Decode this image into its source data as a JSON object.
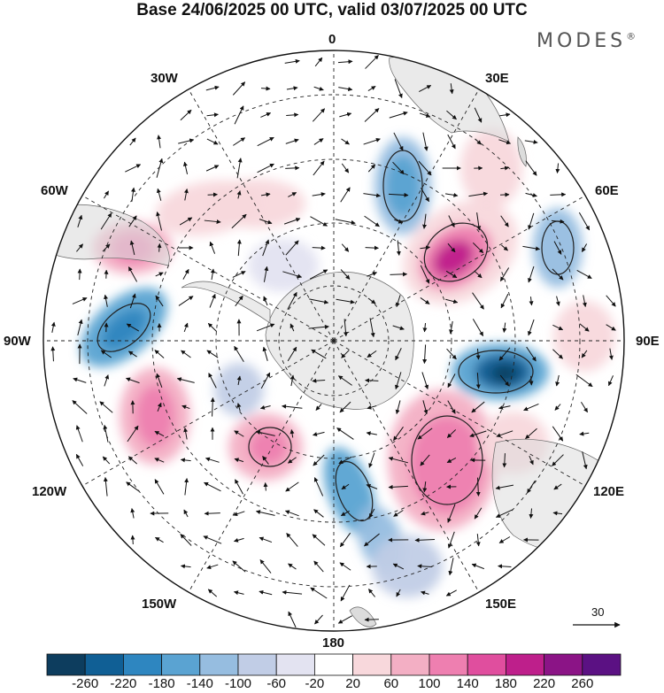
{
  "header": {
    "title": "Base 24/06/2025 00 UTC, valid 03/07/2025 00 UTC",
    "brand": "MODES",
    "brand_mark": "®"
  },
  "map": {
    "projection": "south polar stereographic",
    "lon_labels": {
      "top": "0",
      "top_left": "30W",
      "top_right": "30E",
      "upper_left": "60W",
      "upper_right": "60E",
      "left": "90W",
      "right": "90E",
      "lower_left": "120W",
      "lower_right": "120E",
      "bottom_left": "150W",
      "bottom_right": "150E",
      "bottom": "180"
    },
    "reference_vector": "30"
  },
  "colorbar": {
    "colors": [
      "#0d3d5e",
      "#105f95",
      "#2e86c0",
      "#5aa3d2",
      "#96bde0",
      "#c1cde6",
      "#e3e3f1",
      "#ffffff",
      "#f8d8dc",
      "#f3afc4",
      "#ee7fb0",
      "#e04e9e",
      "#be1f8b",
      "#8b1486",
      "#5b1183"
    ],
    "labels": [
      "-260",
      "-220",
      "-180",
      "-140",
      "-100",
      "-60",
      "-20",
      "20",
      "60",
      "100",
      "140",
      "180",
      "220",
      "260"
    ]
  }
}
